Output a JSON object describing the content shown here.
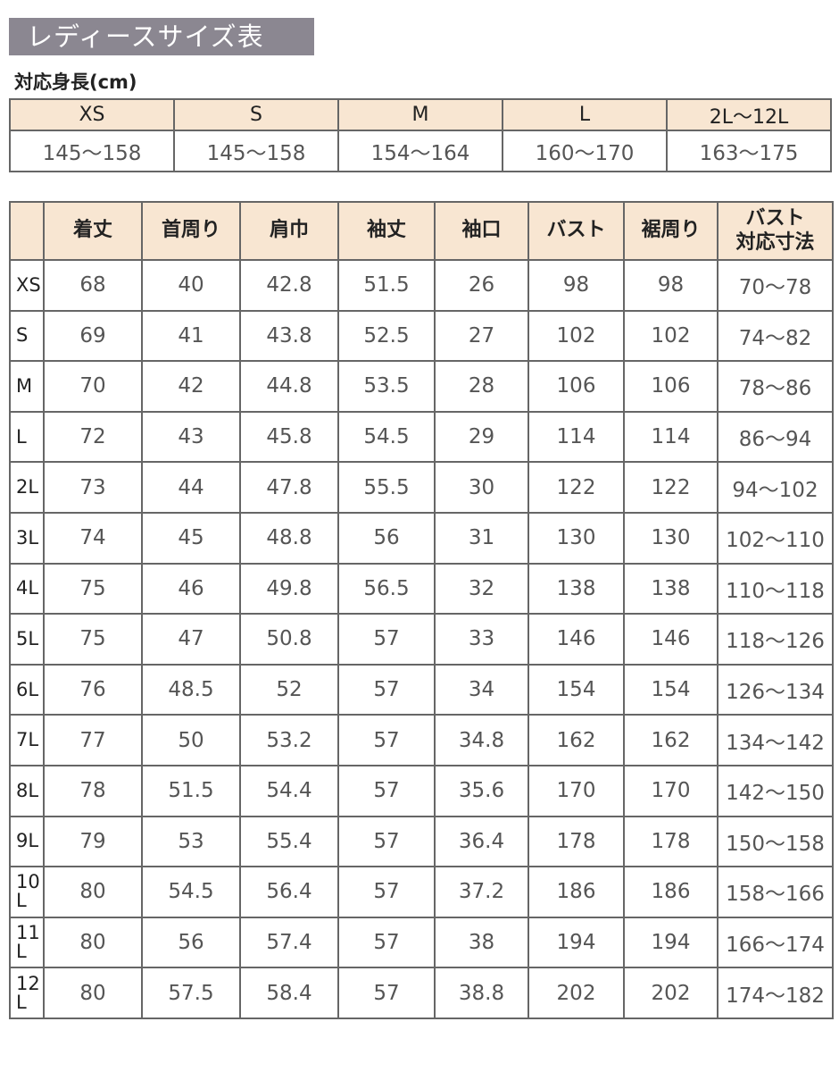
{
  "title": "レディースサイズ表",
  "height_label": "対応身長(cm)",
  "height_table": {
    "sizes": [
      "XS",
      "S",
      "M",
      "L",
      "2L〜12L"
    ],
    "ranges": [
      "145〜158",
      "145〜158",
      "154〜164",
      "160〜170",
      "163〜175"
    ]
  },
  "size_table": {
    "headers": [
      "",
      "着丈",
      "首周り",
      "肩巾",
      "袖丈",
      "袖口",
      "バスト",
      "裾周り",
      "バスト\n対応寸法"
    ],
    "rows": [
      [
        "XS",
        "68",
        "40",
        "42.8",
        "51.5",
        "26",
        "98",
        "98",
        "70〜78"
      ],
      [
        "S",
        "69",
        "41",
        "43.8",
        "52.5",
        "27",
        "102",
        "102",
        "74〜82"
      ],
      [
        "M",
        "70",
        "42",
        "44.8",
        "53.5",
        "28",
        "106",
        "106",
        "78〜86"
      ],
      [
        "L",
        "72",
        "43",
        "45.8",
        "54.5",
        "29",
        "114",
        "114",
        "86〜94"
      ],
      [
        "2L",
        "73",
        "44",
        "47.8",
        "55.5",
        "30",
        "122",
        "122",
        "94〜102"
      ],
      [
        "3L",
        "74",
        "45",
        "48.8",
        "56",
        "31",
        "130",
        "130",
        "102〜110"
      ],
      [
        "4L",
        "75",
        "46",
        "49.8",
        "56.5",
        "32",
        "138",
        "138",
        "110〜118"
      ],
      [
        "5L",
        "75",
        "47",
        "50.8",
        "57",
        "33",
        "146",
        "146",
        "118〜126"
      ],
      [
        "6L",
        "76",
        "48.5",
        "52",
        "57",
        "34",
        "154",
        "154",
        "126〜134"
      ],
      [
        "7L",
        "77",
        "50",
        "53.2",
        "57",
        "34.8",
        "162",
        "162",
        "134〜142"
      ],
      [
        "8L",
        "78",
        "51.5",
        "54.4",
        "57",
        "35.6",
        "170",
        "170",
        "142〜150"
      ],
      [
        "9L",
        "79",
        "53",
        "55.4",
        "57",
        "36.4",
        "178",
        "178",
        "150〜158"
      ],
      [
        "10L",
        "80",
        "54.5",
        "56.4",
        "57",
        "37.2",
        "186",
        "186",
        "158〜166"
      ],
      [
        "11L",
        "80",
        "56",
        "57.4",
        "57",
        "38",
        "194",
        "194",
        "166〜174"
      ],
      [
        "12L",
        "80",
        "57.5",
        "58.4",
        "57",
        "38.8",
        "202",
        "202",
        "174〜182"
      ]
    ]
  },
  "colors": {
    "title_bg": "#8b8791",
    "header_bg": "#f8e6d2",
    "border": "#666666"
  }
}
